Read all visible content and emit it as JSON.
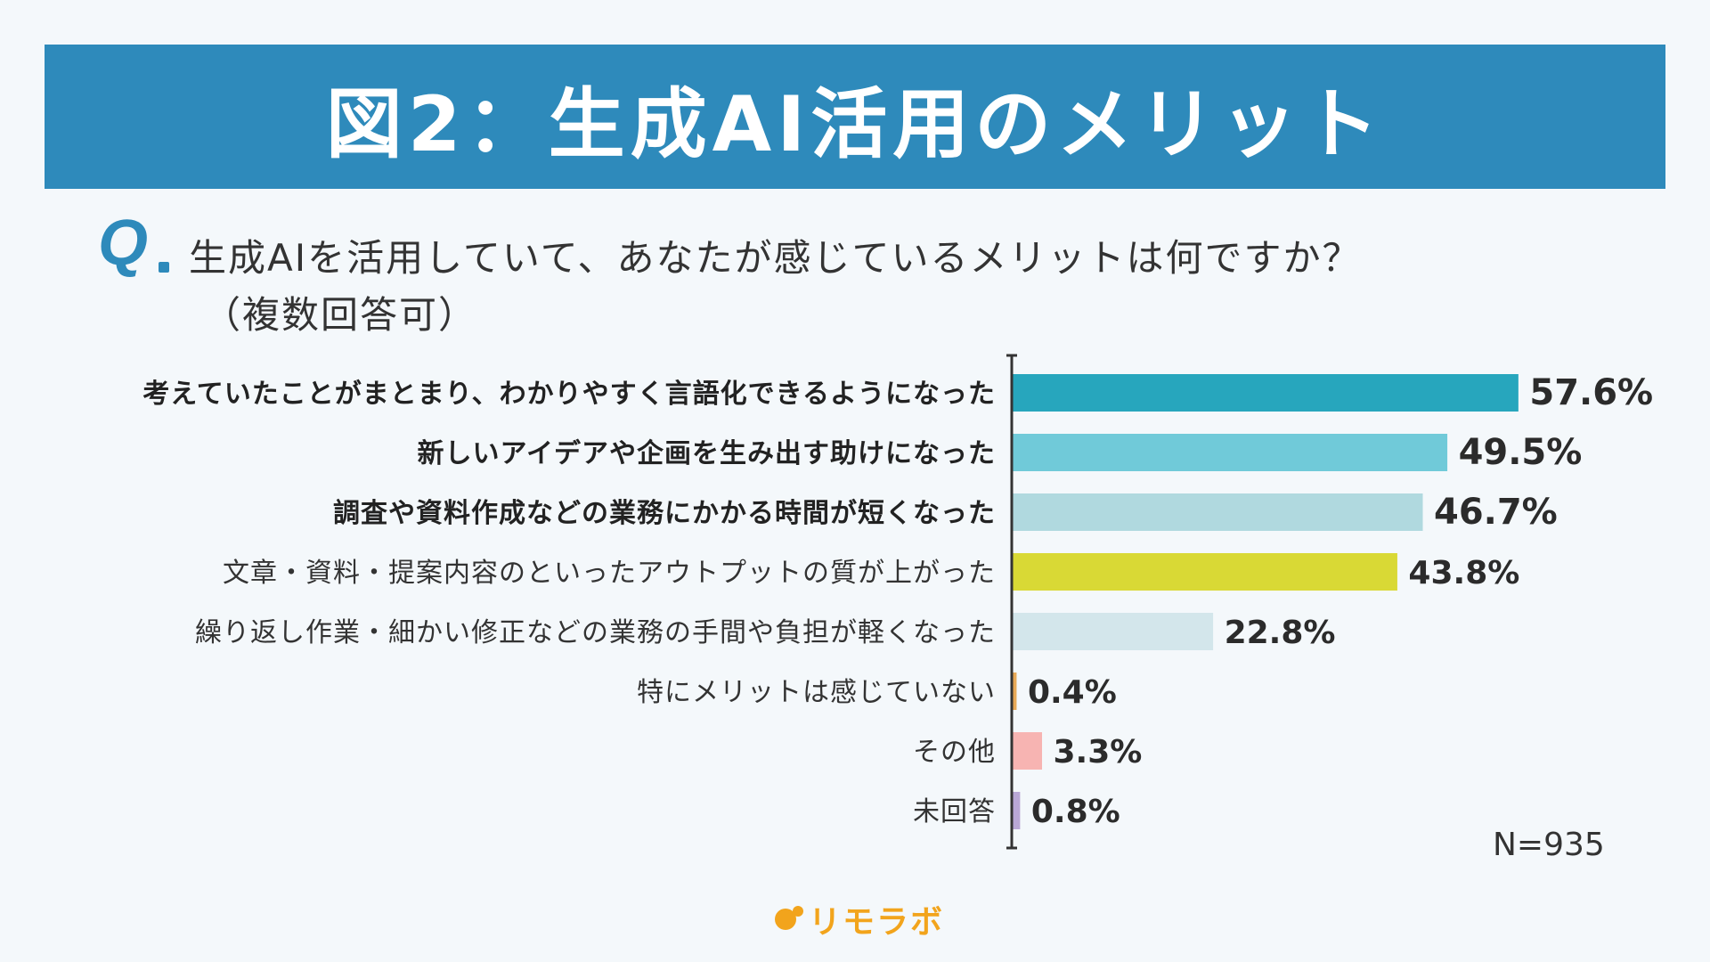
{
  "header": {
    "title": "図2：生成AI活用のメリット"
  },
  "question": {
    "mark": "Q",
    "text": "生成AIを活用していて、あなたが感じているメリットは何ですか？",
    "note": "（複数回答可）"
  },
  "chart_data": {
    "type": "bar",
    "orientation": "horizontal",
    "title": "図2：生成AI活用のメリット",
    "categories": [
      "考えていたことがまとまり、わかりやすく言語化できるようになった",
      "新しいアイデアや企画を生み出す助けになった",
      "調査や資料作成などの業務にかかる時間が短くなった",
      "文章・資料・提案内容のといったアウトプットの質が上がった",
      "繰り返し作業・細かい修正などの業務の手間や負担が軽くなった",
      "特にメリットは感じていない",
      "その他",
      "未回答"
    ],
    "values": [
      57.6,
      49.5,
      46.7,
      43.8,
      22.8,
      0.4,
      3.3,
      0.8
    ],
    "value_labels": [
      "57.6%",
      "49.5%",
      "46.7%",
      "43.8%",
      "22.8%",
      "0.4%",
      "3.3%",
      "0.8%"
    ],
    "bold": [
      true,
      true,
      true,
      false,
      false,
      false,
      false,
      false
    ],
    "colors": [
      "#27a6bd",
      "#70cad9",
      "#b0d9df",
      "#d9d935",
      "#d3e6eb",
      "#e8a957",
      "#f7b4b2",
      "#b9a7d6"
    ],
    "xlim": [
      0,
      100
    ],
    "unit": "%",
    "sample_size": "N=935"
  },
  "brand": {
    "logo_text": "リモラボ",
    "color": "#f2a41c"
  }
}
